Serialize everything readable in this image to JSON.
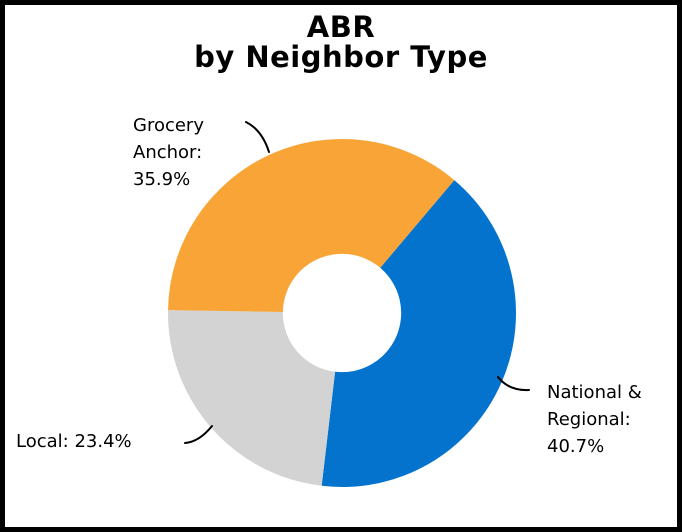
{
  "chart_data": {
    "type": "pie",
    "subtype": "donut",
    "title": "ABR\nby Neighbor Type",
    "legend": "none",
    "data_labels": "outside callouts with leader lines",
    "start_angle_deg": 40.2,
    "inner_radius_ratio": 0.34,
    "slices": [
      {
        "label": "National & Regional",
        "value": 40.7,
        "color": "#0473CE",
        "callout_text": "National &\nRegional:\n40.7%"
      },
      {
        "label": "Local",
        "value": 23.4,
        "color": "#D3D3D3",
        "callout_text": "Local: 23.4%"
      },
      {
        "label": "Grocery Anchor",
        "value": 35.9,
        "color": "#F9A437",
        "callout_text": "Grocery\nAnchor:\n35.9%"
      }
    ]
  }
}
